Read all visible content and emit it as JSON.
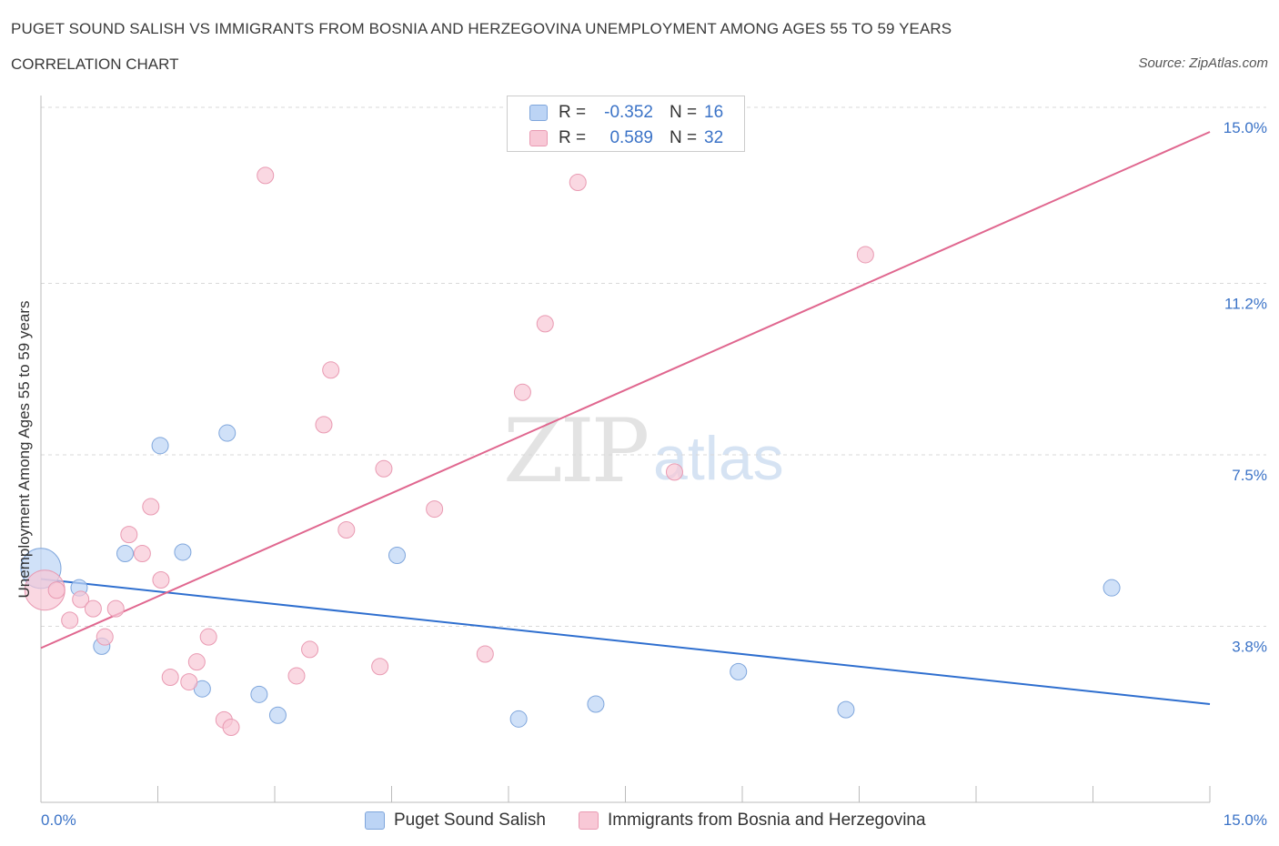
{
  "header": {
    "title": "PUGET SOUND SALISH VS IMMIGRANTS FROM BOSNIA AND HERZEGOVINA UNEMPLOYMENT AMONG AGES 55 TO 59 YEARS",
    "subtitle": "CORRELATION CHART",
    "source": "Source: ZipAtlas.com"
  },
  "watermark": {
    "zip": "ZIP",
    "atlas": "atlas"
  },
  "legend": {
    "rows": [
      {
        "r_label": "R =",
        "r_value": "-0.352",
        "n_label": "N =",
        "n_value": "16"
      },
      {
        "r_label": "R =",
        "r_value": "0.589",
        "n_label": "N =",
        "n_value": "32"
      }
    ]
  },
  "bottom_legend": {
    "series1": "Puget Sound Salish",
    "series2": "Immigrants from Bosnia and Herzegovina"
  },
  "colors": {
    "blue_fill": "#bcd4f5",
    "blue_stroke": "#7fa6dc",
    "blue_line": "#2f6fcf",
    "pink_fill": "#f8c8d6",
    "pink_stroke": "#e99ab2",
    "pink_line": "#e0678f",
    "tick_text": "#3b73c7",
    "grid": "#d9d9d9"
  },
  "chart_data": {
    "type": "scatter",
    "title": "PUGET SOUND SALISH VS IMMIGRANTS FROM BOSNIA AND HERZEGOVINA UNEMPLOYMENT AMONG AGES 55 TO 59 YEARS",
    "xlabel": "",
    "ylabel": "Unemployment Among Ages 55 to 59 years",
    "xlim": [
      0,
      15
    ],
    "ylim": [
      0,
      15
    ],
    "x_tick_labels": [
      "0.0%",
      "15.0%"
    ],
    "y_ticks": [
      3.8,
      7.5,
      11.2,
      15.0
    ],
    "y_tick_labels": [
      "3.8%",
      "7.5%",
      "11.2%",
      "15.0%"
    ],
    "grid": true,
    "series": [
      {
        "name": "Puget Sound Salish",
        "color": "blue",
        "points": [
          [
            0.0,
            5.05
          ],
          [
            0.49,
            4.63
          ],
          [
            0.78,
            3.37
          ],
          [
            1.08,
            5.37
          ],
          [
            1.53,
            7.7
          ],
          [
            1.82,
            5.4
          ],
          [
            2.07,
            2.45
          ],
          [
            2.39,
            7.97
          ],
          [
            2.8,
            2.33
          ],
          [
            3.04,
            1.88
          ],
          [
            4.57,
            5.33
          ],
          [
            6.13,
            1.8
          ],
          [
            7.12,
            2.12
          ],
          [
            8.95,
            2.82
          ],
          [
            10.33,
            2.0
          ],
          [
            13.74,
            4.63
          ]
        ],
        "sizes": [
          22,
          9,
          9,
          9,
          9,
          9,
          9,
          9,
          9,
          9,
          9,
          9,
          9,
          9,
          9,
          9
        ],
        "trend": {
          "x": [
            0,
            15
          ],
          "y": [
            4.82,
            2.12
          ]
        }
      },
      {
        "name": "Immigrants from Bosnia and Herzegovina",
        "color": "pink",
        "points": [
          [
            0.05,
            4.58
          ],
          [
            0.2,
            4.58
          ],
          [
            0.37,
            3.93
          ],
          [
            0.51,
            4.38
          ],
          [
            0.67,
            4.18
          ],
          [
            0.82,
            3.57
          ],
          [
            0.96,
            4.18
          ],
          [
            1.13,
            5.78
          ],
          [
            1.3,
            5.37
          ],
          [
            1.41,
            6.38
          ],
          [
            1.54,
            4.8
          ],
          [
            1.66,
            2.7
          ],
          [
            1.9,
            2.6
          ],
          [
            2.0,
            3.03
          ],
          [
            2.15,
            3.57
          ],
          [
            2.35,
            1.78
          ],
          [
            2.44,
            1.62
          ],
          [
            2.88,
            13.53
          ],
          [
            3.28,
            2.73
          ],
          [
            3.45,
            3.3
          ],
          [
            3.63,
            8.15
          ],
          [
            3.72,
            9.33
          ],
          [
            3.92,
            5.88
          ],
          [
            4.35,
            2.93
          ],
          [
            4.4,
            7.2
          ],
          [
            5.05,
            6.33
          ],
          [
            5.7,
            3.2
          ],
          [
            6.18,
            8.85
          ],
          [
            6.47,
            10.33
          ],
          [
            6.89,
            13.38
          ],
          [
            8.13,
            7.13
          ],
          [
            10.58,
            11.82
          ]
        ],
        "sizes": [
          22,
          9,
          9,
          9,
          9,
          9,
          9,
          9,
          9,
          9,
          9,
          9,
          9,
          9,
          9,
          9,
          9,
          9,
          9,
          9,
          9,
          9,
          9,
          9,
          9,
          9,
          9,
          9,
          9,
          9,
          9,
          9
        ],
        "trend": {
          "x": [
            0,
            15
          ],
          "y": [
            3.33,
            14.47
          ]
        }
      }
    ]
  }
}
